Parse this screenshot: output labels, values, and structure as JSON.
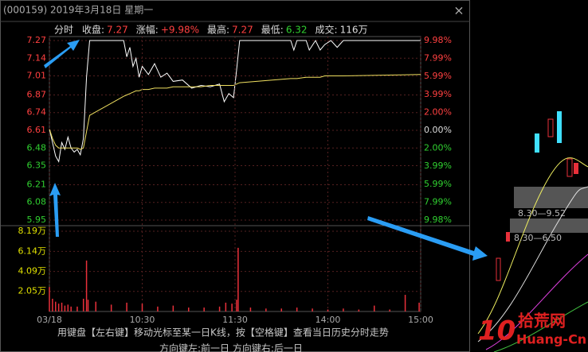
{
  "window": {
    "title": "(000159) 2019年3月18日 星期一",
    "close": "×"
  },
  "header": {
    "mode": "分时",
    "items": [
      {
        "label": "收盘:",
        "value": "7.27"
      },
      {
        "label": "涨幅:",
        "value": "+9.98%"
      },
      {
        "label": "最高:",
        "value": "7.27"
      },
      {
        "label": "最低:",
        "value": "6.32"
      },
      {
        "label": "成交:",
        "value": "116万"
      }
    ]
  },
  "footer": {
    "line1": "用键盘【左右键】移动光标至某一日K线，按【空格键】查看当日历史分时走势",
    "line2": "方向键左:前一日   方向键右:后一日"
  },
  "side_panel": {
    "labels": [
      "8.30—9.52",
      "8.30—6.50"
    ],
    "watermark": {
      "number": "10",
      "name": "拾荒网",
      "site": "Huang-Cn"
    }
  },
  "chart_data": [
    {
      "type": "line",
      "ylim": [
        5.95,
        7.27
      ],
      "y2lim": [
        -9.98,
        9.98
      ],
      "xlim": [
        0,
        240
      ],
      "grid": true,
      "yticks": [
        7.27,
        7.14,
        7.01,
        6.87,
        6.74,
        6.61,
        6.48,
        6.35,
        6.21,
        6.08,
        5.95
      ],
      "y2ticks": [
        {
          "value": 9.98,
          "label": "9.98%"
        },
        {
          "value": 7.99,
          "label": "7.99%"
        },
        {
          "value": 5.99,
          "label": "5.99%"
        },
        {
          "value": 3.99,
          "label": "3.99%"
        },
        {
          "value": 2.0,
          "label": "2.00%"
        },
        {
          "value": 0,
          "label": "0.00%"
        },
        {
          "value": -2.0,
          "label": "2.00%"
        },
        {
          "value": -3.99,
          "label": "3.99%"
        },
        {
          "value": -5.99,
          "label": "5.99%"
        },
        {
          "value": -7.99,
          "label": "7.99%"
        },
        {
          "value": -9.98,
          "label": "9.98%"
        }
      ],
      "x": [
        0,
        2,
        4,
        6,
        8,
        10,
        12,
        14,
        16,
        18,
        20,
        22,
        24,
        26,
        48,
        50,
        52,
        54,
        56,
        58,
        60,
        64,
        68,
        72,
        76,
        80,
        86,
        92,
        98,
        104,
        110,
        113,
        116,
        119,
        121,
        123,
        156,
        158,
        160,
        166,
        168,
        172,
        175,
        178,
        182,
        186,
        190,
        240
      ],
      "series": [
        {
          "color": "#ffffff",
          "values": [
            6.62,
            6.52,
            6.42,
            6.38,
            6.52,
            6.47,
            6.56,
            6.48,
            6.45,
            6.47,
            6.43,
            6.55,
            7.0,
            7.27,
            7.27,
            7.15,
            7.22,
            7.08,
            7.14,
            7.0,
            7.08,
            7.02,
            7.1,
            7.0,
            7.03,
            6.97,
            6.98,
            6.92,
            6.94,
            6.93,
            6.95,
            6.82,
            6.88,
            6.85,
            7.05,
            7.27,
            7.27,
            7.2,
            7.27,
            7.27,
            7.2,
            7.27,
            7.2,
            7.24,
            7.27,
            7.22,
            7.27,
            7.27
          ]
        },
        {
          "color": "#f0e060",
          "values": [
            6.62,
            6.55,
            6.5,
            6.48,
            6.48,
            6.48,
            6.48,
            6.48,
            6.48,
            6.48,
            6.47,
            6.48,
            6.6,
            6.72,
            6.86,
            6.87,
            6.88,
            6.89,
            6.9,
            6.9,
            6.91,
            6.91,
            6.92,
            6.92,
            6.92,
            6.93,
            6.93,
            6.93,
            6.93,
            6.94,
            6.94,
            6.94,
            6.94,
            6.94,
            6.95,
            6.96,
            6.99,
            6.99,
            6.99,
            7.0,
            7.0,
            7.0,
            7.0,
            7.01,
            7.01,
            7.01,
            7.01,
            7.02
          ]
        }
      ]
    },
    {
      "type": "bar",
      "ylim": [
        0,
        8.6
      ],
      "xlim": [
        0,
        240
      ],
      "color": "#e8303a",
      "yticks": [
        {
          "value": 8.19,
          "label": "8.19万"
        },
        {
          "value": 6.14,
          "label": "6.14万"
        },
        {
          "value": 4.09,
          "label": "4.09万"
        },
        {
          "value": 2.05,
          "label": "2.05万"
        }
      ],
      "xticks": [
        {
          "value": 0,
          "label": "03/18"
        },
        {
          "value": 60,
          "label": "10:30"
        },
        {
          "value": 120,
          "label": "11:30"
        },
        {
          "value": 180,
          "label": "14:00"
        },
        {
          "value": 240,
          "label": "15:00"
        }
      ],
      "x": [
        0,
        2,
        4,
        6,
        8,
        10,
        12,
        14,
        18,
        22,
        24,
        25,
        30,
        40,
        50,
        60,
        70,
        80,
        90,
        100,
        110,
        114,
        118,
        121,
        122,
        130,
        140,
        150,
        160,
        170,
        180,
        190,
        200,
        210,
        220,
        230,
        239
      ],
      "values": [
        2.5,
        1.3,
        1.0,
        0.8,
        0.9,
        0.6,
        0.7,
        0.5,
        0.5,
        1.3,
        5.2,
        1.2,
        1.0,
        0.7,
        0.9,
        0.8,
        0.5,
        0.6,
        0.4,
        0.4,
        0.5,
        0.9,
        0.8,
        1.2,
        6.5,
        0.4,
        0.3,
        0.3,
        0.4,
        0.3,
        0.2,
        0.3,
        0.2,
        0.6,
        0.2,
        1.7,
        0.9
      ]
    }
  ]
}
